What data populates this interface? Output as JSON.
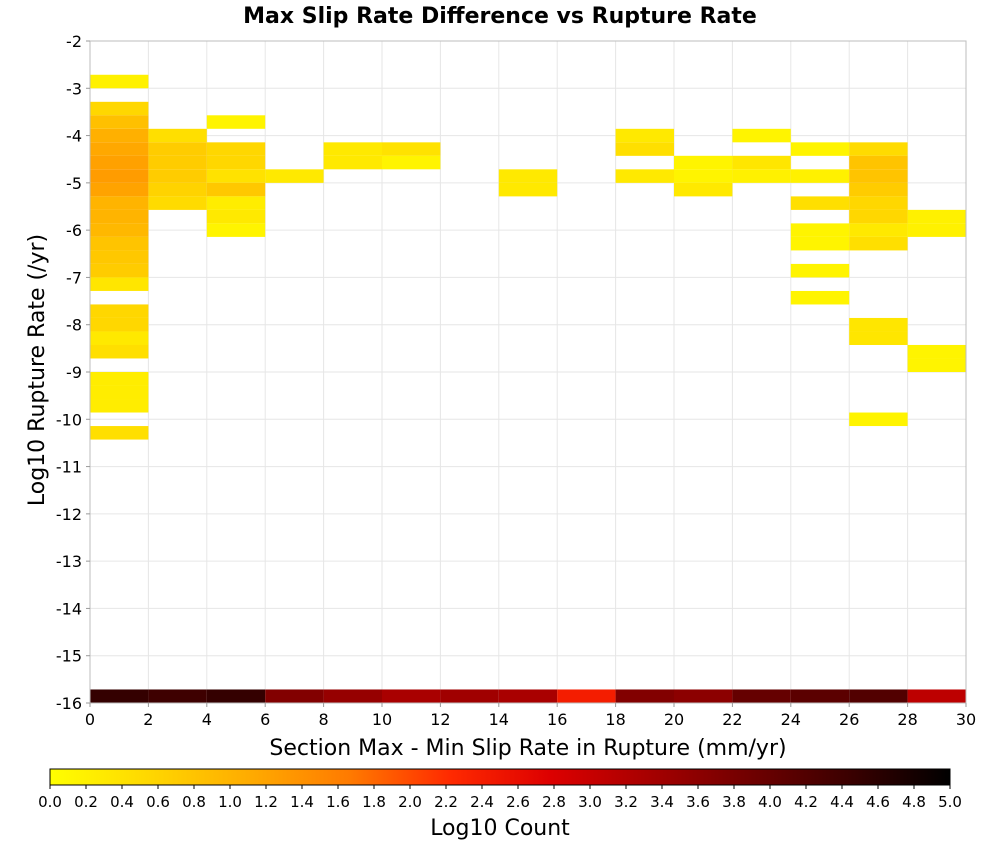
{
  "chart_data": {
    "type": "heatmap",
    "title": "Max Slip Rate Difference vs Rupture Rate",
    "xlabel": "Section Max - Min Slip Rate in Rupture (mm/yr)",
    "ylabel": "Log10 Rupture Rate (/yr)",
    "xlim": [
      0,
      30
    ],
    "ylim": [
      -16,
      -2
    ],
    "xticks": [
      "0",
      "2",
      "4",
      "6",
      "8",
      "10",
      "12",
      "14",
      "16",
      "18",
      "20",
      "22",
      "24",
      "26",
      "28",
      "30"
    ],
    "yticks": [
      "-2",
      "-3",
      "-4",
      "-5",
      "-6",
      "-7",
      "-8",
      "-9",
      "-10",
      "-11",
      "-12",
      "-13",
      "-14",
      "-15",
      "-16"
    ],
    "x_bin_width": 2,
    "y_bin_height": 0.285714,
    "grid": true,
    "colorbar": {
      "label": "Log10 Count",
      "min": 0.0,
      "max": 5.0,
      "ticks": [
        "0.0",
        "0.2",
        "0.4",
        "0.6",
        "0.8",
        "1.0",
        "1.2",
        "1.4",
        "1.6",
        "1.8",
        "2.0",
        "2.2",
        "2.4",
        "2.6",
        "2.8",
        "3.0",
        "3.2",
        "3.4",
        "3.6",
        "3.8",
        "4.0",
        "4.2",
        "4.4",
        "4.6",
        "4.8",
        "5.0"
      ],
      "colors": [
        "#ffff00",
        "#ffd700",
        "#ffab00",
        "#ff7a00",
        "#ff2a00",
        "#dd0000",
        "#a60000",
        "#700000",
        "#3a0000",
        "#000000"
      ]
    },
    "cells": [
      {
        "x": 1,
        "y": -2.857,
        "v": 0.2
      },
      {
        "x": 1,
        "y": -3.429,
        "v": 0.55
      },
      {
        "x": 1,
        "y": -3.714,
        "v": 0.85
      },
      {
        "x": 1,
        "y": -4.0,
        "v": 1.05
      },
      {
        "x": 1,
        "y": -4.286,
        "v": 1.15
      },
      {
        "x": 1,
        "y": -4.571,
        "v": 1.22
      },
      {
        "x": 1,
        "y": -4.857,
        "v": 1.28
      },
      {
        "x": 1,
        "y": -5.143,
        "v": 1.2
      },
      {
        "x": 1,
        "y": -5.429,
        "v": 1.0
      },
      {
        "x": 1,
        "y": -5.714,
        "v": 1.0
      },
      {
        "x": 1,
        "y": -6.0,
        "v": 0.95
      },
      {
        "x": 1,
        "y": -6.286,
        "v": 0.8
      },
      {
        "x": 1,
        "y": -6.571,
        "v": 0.75
      },
      {
        "x": 1,
        "y": -6.857,
        "v": 0.7
      },
      {
        "x": 1,
        "y": -7.143,
        "v": 0.35
      },
      {
        "x": 1,
        "y": -7.714,
        "v": 0.55
      },
      {
        "x": 1,
        "y": -8.0,
        "v": 0.55
      },
      {
        "x": 1,
        "y": -8.286,
        "v": 0.3
      },
      {
        "x": 1,
        "y": -8.571,
        "v": 0.45
      },
      {
        "x": 1,
        "y": -9.143,
        "v": 0.25
      },
      {
        "x": 1,
        "y": -9.429,
        "v": 0.25
      },
      {
        "x": 1,
        "y": -9.714,
        "v": 0.25
      },
      {
        "x": 1,
        "y": -10.286,
        "v": 0.45
      },
      {
        "x": 3,
        "y": -4.0,
        "v": 0.45
      },
      {
        "x": 3,
        "y": -4.286,
        "v": 0.7
      },
      {
        "x": 3,
        "y": -4.571,
        "v": 0.7
      },
      {
        "x": 3,
        "y": -4.857,
        "v": 0.7
      },
      {
        "x": 3,
        "y": -5.143,
        "v": 0.6
      },
      {
        "x": 3,
        "y": -5.429,
        "v": 0.5
      },
      {
        "x": 5,
        "y": -3.714,
        "v": 0.15
      },
      {
        "x": 5,
        "y": -4.286,
        "v": 0.55
      },
      {
        "x": 5,
        "y": -4.571,
        "v": 0.55
      },
      {
        "x": 5,
        "y": -4.857,
        "v": 0.4
      },
      {
        "x": 5,
        "y": -5.143,
        "v": 0.75
      },
      {
        "x": 5,
        "y": -5.429,
        "v": 0.25
      },
      {
        "x": 5,
        "y": -5.714,
        "v": 0.3
      },
      {
        "x": 5,
        "y": -6.0,
        "v": 0.15
      },
      {
        "x": 7,
        "y": -4.857,
        "v": 0.3
      },
      {
        "x": 9,
        "y": -4.286,
        "v": 0.3
      },
      {
        "x": 9,
        "y": -4.571,
        "v": 0.3
      },
      {
        "x": 11,
        "y": -4.286,
        "v": 0.4
      },
      {
        "x": 11,
        "y": -4.571,
        "v": 0.15
      },
      {
        "x": 15,
        "y": -4.857,
        "v": 0.3
      },
      {
        "x": 15,
        "y": -5.143,
        "v": 0.3
      },
      {
        "x": 19,
        "y": -4.0,
        "v": 0.3
      },
      {
        "x": 19,
        "y": -4.286,
        "v": 0.45
      },
      {
        "x": 19,
        "y": -4.857,
        "v": 0.3
      },
      {
        "x": 21,
        "y": -4.571,
        "v": 0.15
      },
      {
        "x": 21,
        "y": -4.857,
        "v": 0.15
      },
      {
        "x": 21,
        "y": -5.143,
        "v": 0.3
      },
      {
        "x": 23,
        "y": -4.0,
        "v": 0.15
      },
      {
        "x": 23,
        "y": -4.571,
        "v": 0.35
      },
      {
        "x": 23,
        "y": -4.857,
        "v": 0.2
      },
      {
        "x": 25,
        "y": -4.286,
        "v": 0.15
      },
      {
        "x": 25,
        "y": -4.857,
        "v": 0.2
      },
      {
        "x": 25,
        "y": -5.429,
        "v": 0.45
      },
      {
        "x": 25,
        "y": -6.0,
        "v": 0.15
      },
      {
        "x": 25,
        "y": -6.286,
        "v": 0.15
      },
      {
        "x": 25,
        "y": -6.857,
        "v": 0.15
      },
      {
        "x": 25,
        "y": -7.429,
        "v": 0.15
      },
      {
        "x": 27,
        "y": -4.286,
        "v": 0.5
      },
      {
        "x": 27,
        "y": -4.571,
        "v": 0.8
      },
      {
        "x": 27,
        "y": -4.857,
        "v": 0.8
      },
      {
        "x": 27,
        "y": -5.143,
        "v": 0.7
      },
      {
        "x": 27,
        "y": -5.429,
        "v": 0.55
      },
      {
        "x": 27,
        "y": -5.714,
        "v": 0.55
      },
      {
        "x": 27,
        "y": -6.0,
        "v": 0.3
      },
      {
        "x": 27,
        "y": -6.286,
        "v": 0.45
      },
      {
        "x": 27,
        "y": -8.0,
        "v": 0.35
      },
      {
        "x": 27,
        "y": -8.286,
        "v": 0.35
      },
      {
        "x": 27,
        "y": -10.0,
        "v": 0.15
      },
      {
        "x": 29,
        "y": -5.714,
        "v": 0.2
      },
      {
        "x": 29,
        "y": -6.0,
        "v": 0.2
      },
      {
        "x": 29,
        "y": -8.571,
        "v": 0.15
      },
      {
        "x": 29,
        "y": -8.857,
        "v": 0.15
      },
      {
        "x": 1,
        "y": -15.857,
        "v": 4.5
      },
      {
        "x": 3,
        "y": -15.857,
        "v": 4.4
      },
      {
        "x": 5,
        "y": -15.857,
        "v": 4.5
      },
      {
        "x": 7,
        "y": -15.857,
        "v": 3.7
      },
      {
        "x": 9,
        "y": -15.857,
        "v": 3.5
      },
      {
        "x": 11,
        "y": -15.857,
        "v": 3.3
      },
      {
        "x": 13,
        "y": -15.857,
        "v": 3.4
      },
      {
        "x": 15,
        "y": -15.857,
        "v": 3.3
      },
      {
        "x": 17,
        "y": -15.857,
        "v": 2.4
      },
      {
        "x": 19,
        "y": -15.857,
        "v": 3.7
      },
      {
        "x": 21,
        "y": -15.857,
        "v": 3.6
      },
      {
        "x": 23,
        "y": -15.857,
        "v": 4.0
      },
      {
        "x": 25,
        "y": -15.857,
        "v": 4.1
      },
      {
        "x": 27,
        "y": -15.857,
        "v": 4.2
      },
      {
        "x": 29,
        "y": -15.857,
        "v": 3.1
      }
    ]
  }
}
